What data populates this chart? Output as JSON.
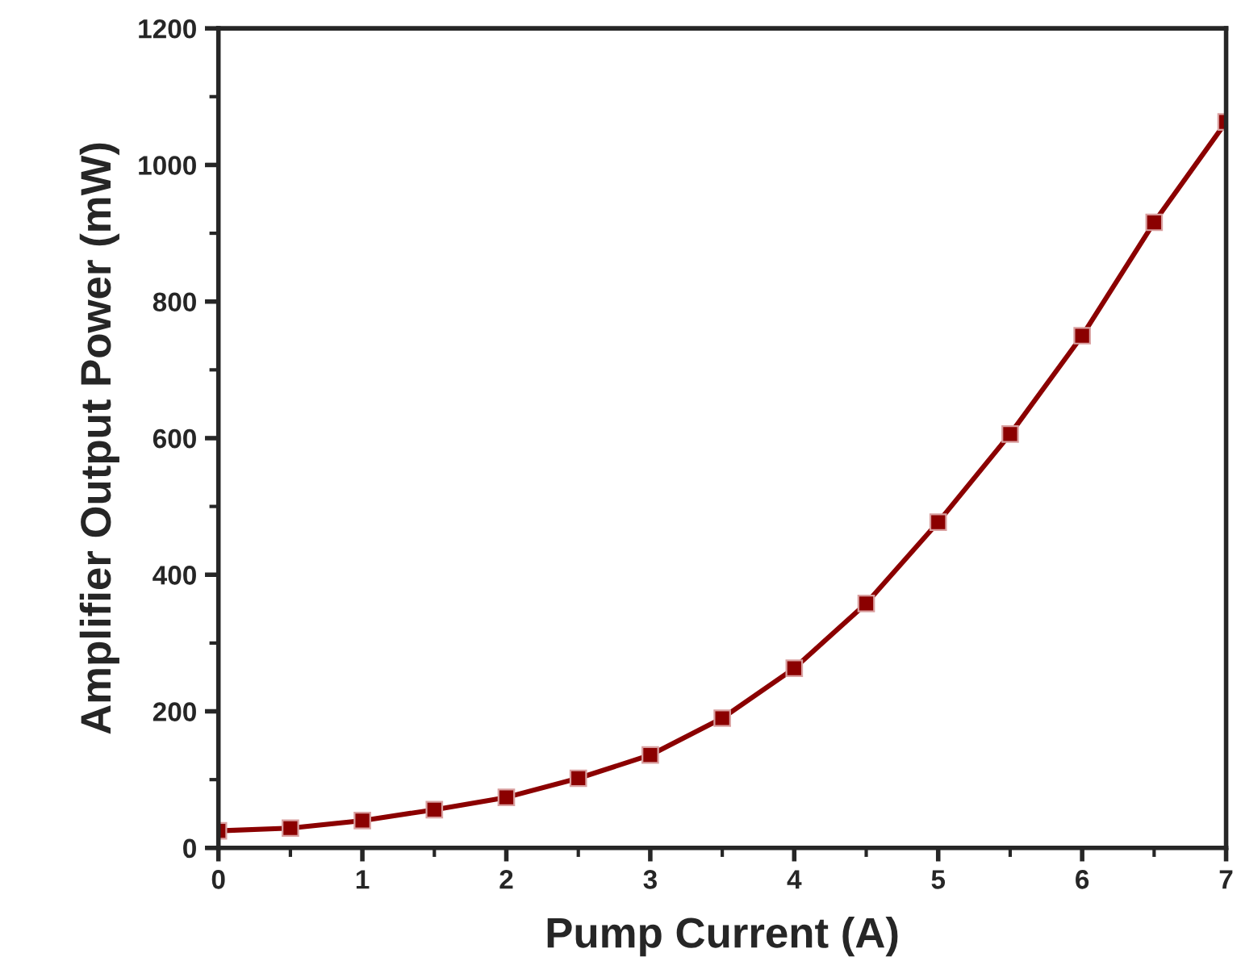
{
  "chart_data": {
    "type": "line",
    "xlabel": "Pump Current (A)",
    "ylabel": "Amplifier Output Power (mW)",
    "x": [
      0,
      0.5,
      1,
      1.5,
      2,
      2.5,
      3,
      3.5,
      4,
      4.5,
      5,
      5.5,
      6,
      6.5,
      7
    ],
    "series": [
      {
        "color": "#8b0000",
        "values": [
          25,
          29,
          40,
          56,
          74,
          102,
          136,
          190,
          263,
          358,
          477,
          606,
          750,
          916,
          1063
        ]
      }
    ],
    "xlim": [
      0,
      7
    ],
    "ylim": [
      0,
      1200
    ],
    "xticks": [
      0,
      1,
      2,
      3,
      4,
      5,
      6,
      7
    ],
    "yticks": [
      0,
      200,
      400,
      600,
      800,
      1000,
      1200
    ],
    "marker": "square",
    "line_style": "solid"
  }
}
